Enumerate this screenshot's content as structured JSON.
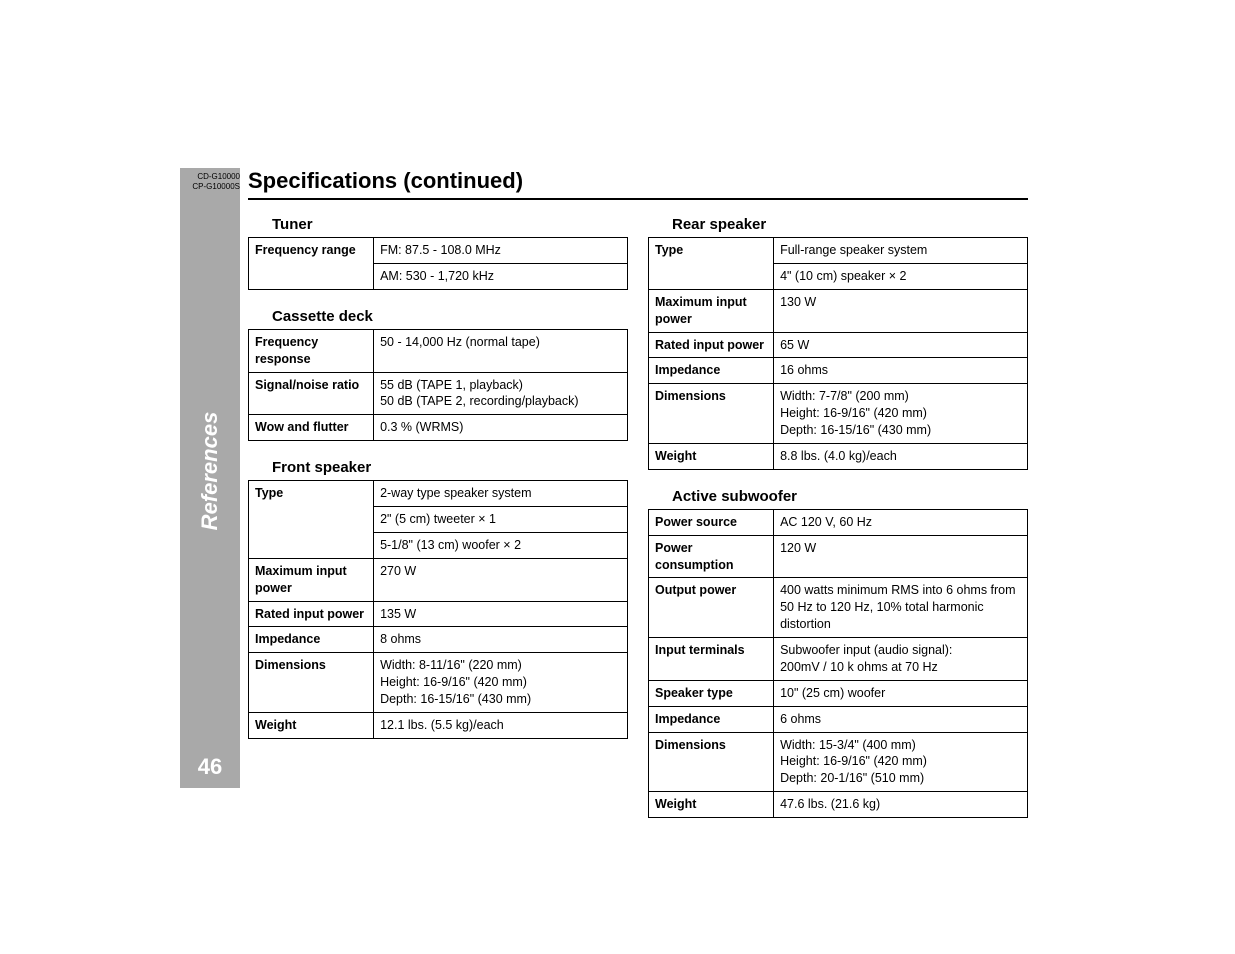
{
  "model_codes": [
    "CD-G10000",
    "CP-G10000S"
  ],
  "main_title": "Specifications (continued)",
  "sidebar_label": "References",
  "page_number": "46",
  "sections": {
    "tuner": {
      "title": "Tuner",
      "rows": [
        {
          "label": "Frequency range",
          "lines": [
            "FM: 87.5 - 108.0 MHz",
            "AM: 530 - 1,720 kHz"
          ],
          "split": true
        }
      ]
    },
    "cassette": {
      "title": "Cassette deck",
      "rows": [
        {
          "label": "Frequency response",
          "lines": [
            "50 - 14,000 Hz (normal tape)"
          ]
        },
        {
          "label": "Signal/noise ratio",
          "lines": [
            "55 dB (TAPE 1, playback)",
            "50 dB (TAPE 2, recording/playback)"
          ]
        },
        {
          "label": "Wow and flutter",
          "lines": [
            "0.3 % (WRMS)"
          ]
        }
      ]
    },
    "front": {
      "title": "Front speaker",
      "rows": [
        {
          "label": "Type",
          "lines": [
            "2-way type speaker system",
            "2\" (5 cm) tweeter × 1",
            "5-1/8\" (13 cm) woofer × 2"
          ],
          "split": true
        },
        {
          "label": "Maximum input power",
          "lines": [
            "270 W"
          ]
        },
        {
          "label": "Rated input power",
          "lines": [
            "135 W"
          ]
        },
        {
          "label": "Impedance",
          "lines": [
            "8 ohms"
          ]
        },
        {
          "label": "Dimensions",
          "lines": [
            "Width: 8-11/16\" (220 mm)",
            "Height: 16-9/16\" (420 mm)",
            "Depth: 16-15/16\" (430 mm)"
          ]
        },
        {
          "label": "Weight",
          "lines": [
            "12.1 lbs. (5.5 kg)/each"
          ]
        }
      ]
    },
    "rear": {
      "title": "Rear speaker",
      "rows": [
        {
          "label": "Type",
          "lines": [
            "Full-range speaker system",
            "4\" (10 cm) speaker × 2"
          ],
          "split": true
        },
        {
          "label": "Maximum input power",
          "lines": [
            "130 W"
          ]
        },
        {
          "label": "Rated input power",
          "lines": [
            "65 W"
          ]
        },
        {
          "label": "Impedance",
          "lines": [
            "16 ohms"
          ]
        },
        {
          "label": "Dimensions",
          "lines": [
            "Width: 7-7/8\" (200 mm)",
            "Height: 16-9/16\" (420 mm)",
            "Depth: 16-15/16\" (430 mm)"
          ]
        },
        {
          "label": "Weight",
          "lines": [
            "8.8 lbs. (4.0 kg)/each"
          ]
        }
      ]
    },
    "subwoofer": {
      "title": "Active subwoofer",
      "rows": [
        {
          "label": "Power source",
          "lines": [
            "AC 120 V, 60 Hz"
          ]
        },
        {
          "label": "Power consumption",
          "lines": [
            "120 W"
          ]
        },
        {
          "label": "Output power",
          "lines": [
            "400 watts minimum RMS into 6 ohms from 50 Hz to 120 Hz, 10% total harmonic distortion"
          ]
        },
        {
          "label": "Input terminals",
          "lines": [
            "Subwoofer input (audio signal):",
            "200mV / 10 k ohms at 70 Hz"
          ]
        },
        {
          "label": "Speaker type",
          "lines": [
            "10\" (25 cm) woofer"
          ]
        },
        {
          "label": "Impedance",
          "lines": [
            "6 ohms"
          ]
        },
        {
          "label": "Dimensions",
          "lines": [
            "Width: 15-3/4\" (400 mm)",
            "Height: 16-9/16\" (420 mm)",
            "Depth: 20-1/16\" (510 mm)"
          ]
        },
        {
          "label": "Weight",
          "lines": [
            "47.6 lbs. (21.6 kg)"
          ]
        }
      ]
    }
  },
  "styling": {
    "body_bg": "#ffffff",
    "sidebar_bg": "#a9a9a9",
    "sidebar_text_color": "#ffffff",
    "border_color": "#000000",
    "title_fontsize_pt": 22,
    "section_title_fontsize_pt": 15,
    "table_fontsize_pt": 12.5,
    "label_col_width_pct": 33,
    "sidebar_fontsize_pt": 22,
    "page_number_fontsize_pt": 22
  }
}
